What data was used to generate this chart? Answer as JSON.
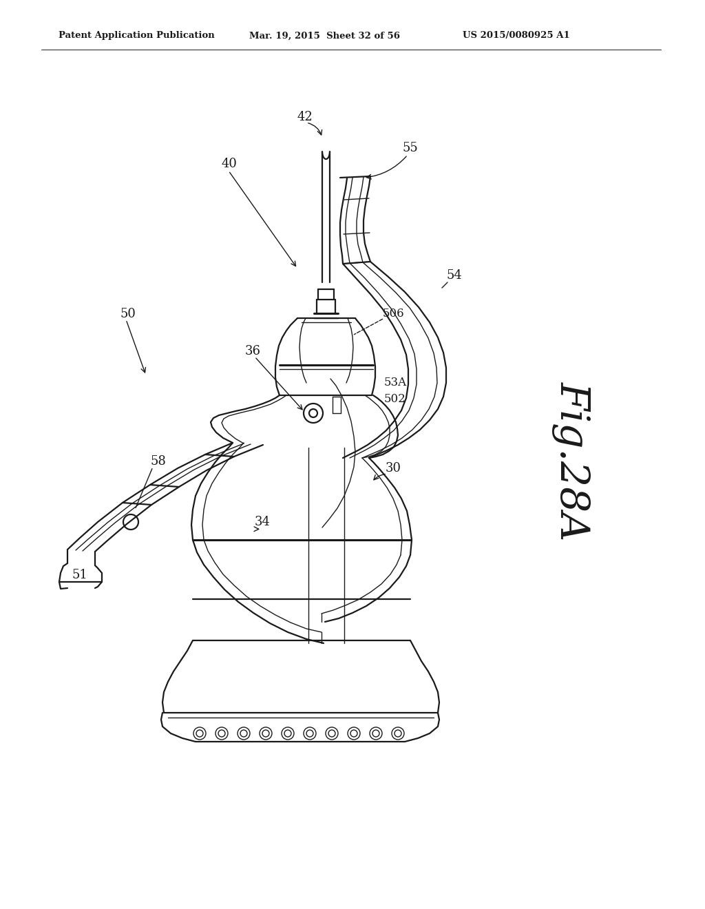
{
  "header_left": "Patent Application Publication",
  "header_center": "Mar. 19, 2015  Sheet 32 of 56",
  "header_right": "US 2015/0080925 A1",
  "fig_label": "Fig.28A",
  "bg_color": "#ffffff",
  "line_color": "#1a1a1a"
}
